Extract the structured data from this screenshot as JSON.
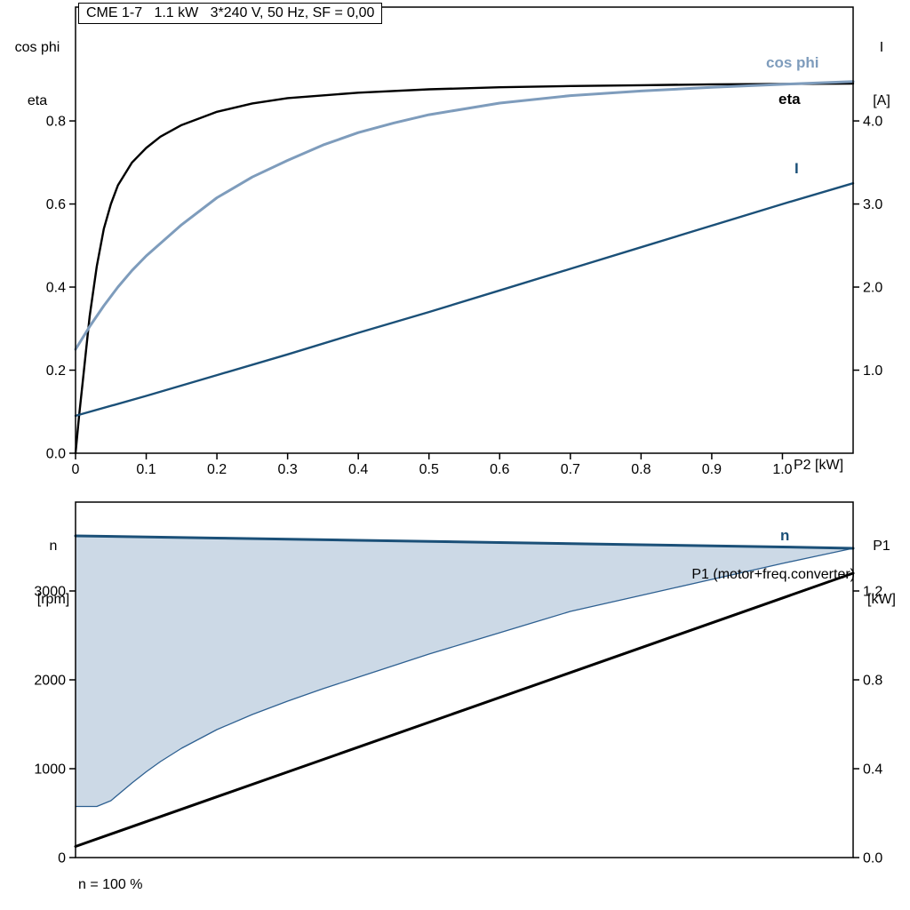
{
  "page": {
    "background": "#ffffff"
  },
  "colors": {
    "eta": "#000000",
    "cos_phi": "#7e9cbc",
    "current": "#1b5078",
    "n": "#1b5078",
    "p1": "#000000",
    "area_fill": "#ccd9e6",
    "area_edge": "#2e6091",
    "axis": "#000000"
  },
  "top_chart": {
    "title": "CME 1-7   1.1 kW   3*240 V, 50 Hz, SF = 0,00",
    "left_label_1": "cos phi",
    "left_label_2": "eta",
    "right_label_1": "I",
    "right_label_2": "[A]",
    "x_axis_label": "P2 [kW]",
    "curve_label_cos_phi": "cos phi",
    "curve_label_eta": "eta",
    "curve_label_current": "I"
  },
  "bottom_chart": {
    "left_label_1": "n",
    "left_label_2": "[rpm]",
    "right_label_1": "P1",
    "right_label_2": "[kW]",
    "curve_label_n": "n",
    "curve_label_p1": "P1 (motor+freq.converter)",
    "footnote": "n = 100 %"
  },
  "chart_data": [
    {
      "type": "line",
      "title": "CME 1-7   1.1 kW   3*240 V, 50 Hz, SF = 0,00",
      "xlabel": "P2 [kW]",
      "xlim": [
        0,
        1.1
      ],
      "x_ticks": [
        {
          "label": "0",
          "v": 0
        },
        {
          "label": "0.1",
          "v": 0.1
        },
        {
          "label": "0.2",
          "v": 0.2
        },
        {
          "label": "0.3",
          "v": 0.3
        },
        {
          "label": "0.4",
          "v": 0.4
        },
        {
          "label": "0.5",
          "v": 0.5
        },
        {
          "label": "0.6",
          "v": 0.6
        },
        {
          "label": "0.7",
          "v": 0.7
        },
        {
          "label": "0.8",
          "v": 0.8
        },
        {
          "label": "0.9",
          "v": 0.9
        },
        {
          "label": "1.0",
          "v": 1.0
        }
      ],
      "left_axis": {
        "title": "cos phi / eta",
        "lim": [
          0,
          1.074
        ],
        "ticks": [
          {
            "label": "0.0",
            "v": 0.0
          },
          {
            "label": "0.2",
            "v": 0.2
          },
          {
            "label": "0.4",
            "v": 0.4
          },
          {
            "label": "0.6",
            "v": 0.6
          },
          {
            "label": "0.8",
            "v": 0.8
          }
        ]
      },
      "right_axis": {
        "title": "I [A]",
        "lim": [
          0,
          5.37
        ],
        "ticks": [
          {
            "label": "1.0",
            "v": 1.0
          },
          {
            "label": "2.0",
            "v": 2.0
          },
          {
            "label": "3.0",
            "v": 3.0
          },
          {
            "label": "4.0",
            "v": 4.0
          }
        ]
      },
      "series": [
        {
          "name": "eta",
          "axis": "left",
          "color_key": "eta",
          "width": 2.4,
          "points": [
            [
              0,
              0
            ],
            [
              0.005,
              0.09
            ],
            [
              0.01,
              0.17
            ],
            [
              0.02,
              0.33
            ],
            [
              0.03,
              0.45
            ],
            [
              0.04,
              0.54
            ],
            [
              0.05,
              0.6
            ],
            [
              0.06,
              0.645
            ],
            [
              0.08,
              0.7
            ],
            [
              0.1,
              0.735
            ],
            [
              0.12,
              0.762
            ],
            [
              0.15,
              0.79
            ],
            [
              0.2,
              0.822
            ],
            [
              0.25,
              0.842
            ],
            [
              0.3,
              0.855
            ],
            [
              0.4,
              0.868
            ],
            [
              0.5,
              0.876
            ],
            [
              0.6,
              0.881
            ],
            [
              0.7,
              0.884
            ],
            [
              0.8,
              0.886
            ],
            [
              0.9,
              0.888
            ],
            [
              1.0,
              0.889
            ],
            [
              1.1,
              0.89
            ]
          ]
        },
        {
          "name": "cos phi",
          "axis": "left",
          "color_key": "cos_phi",
          "width": 3,
          "points": [
            [
              0,
              0.25
            ],
            [
              0.02,
              0.305
            ],
            [
              0.04,
              0.355
            ],
            [
              0.06,
              0.4
            ],
            [
              0.08,
              0.44
            ],
            [
              0.1,
              0.475
            ],
            [
              0.15,
              0.55
            ],
            [
              0.2,
              0.615
            ],
            [
              0.25,
              0.665
            ],
            [
              0.3,
              0.705
            ],
            [
              0.35,
              0.742
            ],
            [
              0.4,
              0.772
            ],
            [
              0.45,
              0.795
            ],
            [
              0.5,
              0.815
            ],
            [
              0.6,
              0.843
            ],
            [
              0.7,
              0.861
            ],
            [
              0.8,
              0.872
            ],
            [
              0.9,
              0.881
            ],
            [
              1.0,
              0.888
            ],
            [
              1.1,
              0.895
            ]
          ]
        },
        {
          "name": "I",
          "axis": "right",
          "color_key": "current",
          "width": 2.4,
          "points": [
            [
              0,
              0.45
            ],
            [
              0.1,
              0.69
            ],
            [
              0.2,
              0.94
            ],
            [
              0.3,
              1.19
            ],
            [
              0.4,
              1.45
            ],
            [
              0.5,
              1.7
            ],
            [
              0.6,
              1.96
            ],
            [
              0.7,
              2.22
            ],
            [
              0.8,
              2.48
            ],
            [
              0.9,
              2.74
            ],
            [
              1.0,
              3.0
            ],
            [
              1.1,
              3.25
            ]
          ]
        }
      ]
    },
    {
      "type": "line+area",
      "title": "",
      "xlabel": "",
      "xlim": [
        0,
        1.1
      ],
      "x_ticks": [],
      "left_axis": {
        "title": "n [rpm]",
        "lim": [
          0,
          4000
        ],
        "ticks": [
          {
            "label": "0",
            "v": 0
          },
          {
            "label": "1000",
            "v": 1000
          },
          {
            "label": "2000",
            "v": 2000
          },
          {
            "label": "3000",
            "v": 3000
          }
        ]
      },
      "right_axis": {
        "title": "P1 [kW]",
        "lim": [
          0,
          1.6
        ],
        "ticks": [
          {
            "label": "0.0",
            "v": 0.0
          },
          {
            "label": "0.4",
            "v": 0.4
          },
          {
            "label": "0.8",
            "v": 0.8
          },
          {
            "label": "1.2",
            "v": 1.2
          }
        ]
      },
      "area": {
        "upper": "n",
        "lower": "n min",
        "fill_key": "area_fill"
      },
      "series": [
        {
          "name": "n min",
          "axis": "left",
          "color_key": "area_edge",
          "width": 1.3,
          "points": [
            [
              0,
              575
            ],
            [
              0.03,
              575
            ],
            [
              0.05,
              640
            ],
            [
              0.08,
              840
            ],
            [
              0.1,
              965
            ],
            [
              0.12,
              1080
            ],
            [
              0.15,
              1230
            ],
            [
              0.2,
              1440
            ],
            [
              0.25,
              1610
            ],
            [
              0.3,
              1760
            ],
            [
              0.35,
              1900
            ],
            [
              0.4,
              2030
            ],
            [
              0.45,
              2160
            ],
            [
              0.5,
              2290
            ],
            [
              0.55,
              2410
            ],
            [
              0.6,
              2530
            ],
            [
              0.65,
              2650
            ],
            [
              0.7,
              2770
            ],
            [
              0.75,
              2860
            ],
            [
              0.8,
              2950
            ],
            [
              0.85,
              3040
            ],
            [
              0.9,
              3130
            ],
            [
              0.95,
              3220
            ],
            [
              1.0,
              3310
            ],
            [
              1.05,
              3395
            ],
            [
              1.1,
              3480
            ]
          ]
        },
        {
          "name": "n",
          "axis": "left",
          "color_key": "n",
          "width": 3,
          "points": [
            [
              0,
              3620
            ],
            [
              0.2,
              3595
            ],
            [
              0.4,
              3570
            ],
            [
              0.6,
              3545
            ],
            [
              0.8,
              3520
            ],
            [
              1.0,
              3495
            ],
            [
              1.1,
              3480
            ]
          ]
        },
        {
          "name": "P1 (motor+freq.converter)",
          "axis": "right",
          "color_key": "p1",
          "width": 3,
          "points": [
            [
              0,
              0.05
            ],
            [
              0.55,
              0.665
            ],
            [
              1.1,
              1.28
            ]
          ]
        }
      ]
    }
  ]
}
